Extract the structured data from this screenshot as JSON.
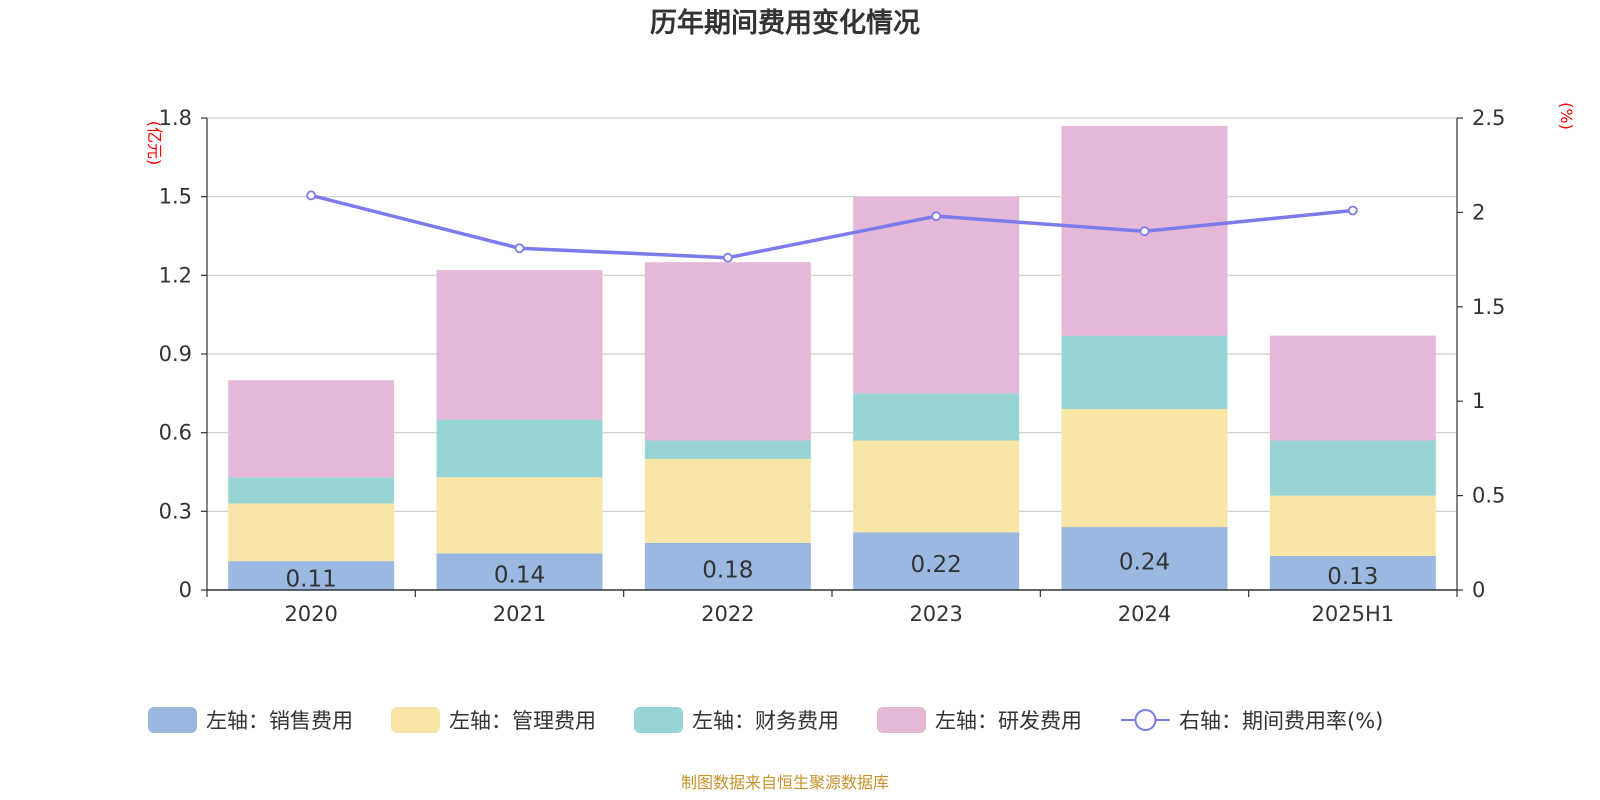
{
  "chart_data": {
    "type": "bar",
    "title": "历年期间费用变化情况",
    "categories": [
      "2020",
      "2021",
      "2022",
      "2023",
      "2024",
      "2025H1"
    ],
    "left_axis": {
      "unit": "(亿元)",
      "ylim": [
        0,
        1.8
      ],
      "ticks": [
        "0",
        "0.3",
        "0.6",
        "0.9",
        "1.2",
        "1.5",
        "1.8"
      ]
    },
    "right_axis": {
      "unit": "(%)",
      "ylim": [
        0,
        2.5
      ],
      "ticks": [
        "0",
        "0.5",
        "1",
        "1.5",
        "2",
        "2.5"
      ]
    },
    "stacked": true,
    "grid": true,
    "legend_position": "bottom",
    "series": [
      {
        "name": "左轴：销售费用",
        "type": "bar",
        "axis": "left",
        "color": "#9bb8e1",
        "values": [
          0.11,
          0.14,
          0.18,
          0.22,
          0.24,
          0.13
        ],
        "labels": [
          "0.11",
          "0.14",
          "0.18",
          "0.22",
          "0.24",
          "0.13"
        ]
      },
      {
        "name": "左轴：管理费用",
        "type": "bar",
        "axis": "left",
        "color": "#f7e6a6",
        "values": [
          0.22,
          0.29,
          0.32,
          0.35,
          0.45,
          0.23
        ]
      },
      {
        "name": "左轴：财务费用",
        "type": "bar",
        "axis": "left",
        "color": "#98d4d4",
        "values": [
          0.1,
          0.22,
          0.07,
          0.18,
          0.28,
          0.21
        ]
      },
      {
        "name": "左轴：研发费用",
        "type": "bar",
        "axis": "left",
        "color": "#e6b8d8",
        "values": [
          0.37,
          0.57,
          0.68,
          0.75,
          0.8,
          0.4
        ]
      },
      {
        "name": "右轴：期间费用率(%)",
        "type": "line",
        "axis": "right",
        "color": "#7b7bec",
        "values": [
          2.09,
          1.81,
          1.76,
          1.98,
          1.9,
          2.01
        ]
      }
    ],
    "source": "制图数据来自恒生聚源数据库"
  }
}
